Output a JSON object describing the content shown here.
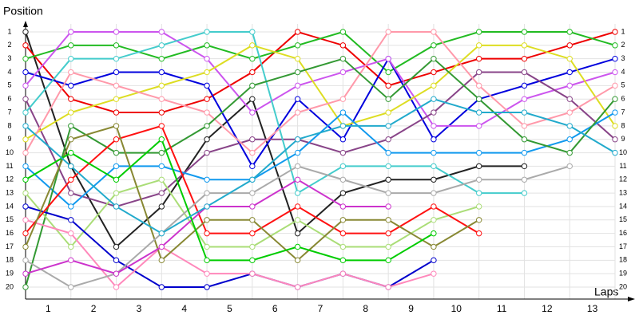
{
  "chart_data": {
    "type": "line",
    "y_label": "Position",
    "x_label": "Laps",
    "x": [
      0,
      1,
      2,
      3,
      4,
      5,
      6,
      7,
      8,
      9,
      10,
      11,
      12,
      13
    ],
    "xlim": [
      0,
      13
    ],
    "xticks": [
      {
        "value": 0.5,
        "label": "1"
      },
      {
        "value": 1.5,
        "label": "2"
      },
      {
        "value": 2.5,
        "label": "3"
      },
      {
        "value": 3.5,
        "label": "4"
      },
      {
        "value": 4.5,
        "label": "5"
      },
      {
        "value": 5.5,
        "label": "6"
      },
      {
        "value": 6.5,
        "label": "7"
      },
      {
        "value": 7.5,
        "label": "8"
      },
      {
        "value": 8.5,
        "label": "9"
      },
      {
        "value": 9.5,
        "label": "10"
      },
      {
        "value": 10.5,
        "label": "11"
      },
      {
        "value": 11.5,
        "label": "12"
      },
      {
        "value": 12.5,
        "label": "13"
      }
    ],
    "ylim": [
      1,
      20
    ],
    "y_reversed": true,
    "yticks": [
      1,
      2,
      3,
      4,
      5,
      6,
      7,
      8,
      9,
      10,
      11,
      12,
      13,
      14,
      15,
      16,
      17,
      18,
      19,
      20
    ],
    "grid": true,
    "series": [
      {
        "color": "#222222",
        "values": [
          1,
          11,
          17,
          14,
          9,
          6,
          16,
          13,
          12,
          12,
          11,
          11,
          null,
          null
        ]
      },
      {
        "color": "#ee0000",
        "values": [
          2,
          6,
          7,
          7,
          6,
          4,
          1,
          2,
          5,
          4,
          3,
          3,
          2,
          1
        ]
      },
      {
        "color": "#22bb22",
        "values": [
          3,
          2,
          2,
          3,
          2,
          3,
          2,
          1,
          4,
          2,
          1,
          1,
          1,
          2
        ]
      },
      {
        "color": "#0000dd",
        "values": [
          4,
          5,
          4,
          4,
          5,
          11,
          6,
          9,
          3,
          9,
          6,
          5,
          4,
          3
        ]
      },
      {
        "color": "#cc55ee",
        "values": [
          5,
          1,
          1,
          1,
          3,
          7,
          5,
          4,
          3,
          8,
          8,
          6,
          5,
          4
        ]
      },
      {
        "color": "#884488",
        "values": [
          6,
          13,
          14,
          13,
          10,
          9,
          9,
          10,
          9,
          7,
          4,
          4,
          6,
          9
        ]
      },
      {
        "color": "#44cccc",
        "values": [
          7,
          3,
          3,
          2,
          1,
          1,
          13,
          11,
          11,
          11,
          13,
          13,
          null,
          null
        ]
      },
      {
        "color": "#dddd22",
        "values": [
          9,
          7,
          6,
          5,
          4,
          2,
          3,
          8,
          7,
          5,
          2,
          2,
          3,
          8
        ]
      },
      {
        "color": "#ff99aa",
        "values": [
          10,
          4,
          5,
          6,
          7,
          10,
          7,
          6,
          1,
          1,
          5,
          8,
          7,
          5
        ]
      },
      {
        "color": "#1199ee",
        "values": [
          11,
          14,
          11,
          11,
          12,
          12,
          10,
          7,
          10,
          10,
          10,
          10,
          9,
          7
        ]
      },
      {
        "color": "#339933",
        "values": [
          20,
          8,
          10,
          10,
          8,
          5,
          4,
          3,
          6,
          3,
          6,
          9,
          10,
          6
        ]
      },
      {
        "color": "#aadd77",
        "values": [
          13,
          17,
          13,
          12,
          17,
          17,
          15,
          17,
          17,
          15,
          14,
          null,
          null,
          null
        ]
      },
      {
        "color": "#0000cc",
        "values": [
          14,
          15,
          18,
          20,
          20,
          19,
          20,
          19,
          20,
          18,
          null,
          null,
          null,
          null
        ]
      },
      {
        "color": "#ff88bb",
        "values": [
          15,
          16,
          20,
          17,
          19,
          19,
          20,
          19,
          20,
          19,
          null,
          null,
          null,
          null
        ]
      },
      {
        "color": "#ff1111",
        "values": [
          16,
          12,
          9,
          8,
          16,
          16,
          14,
          16,
          16,
          14,
          16,
          null,
          null,
          null
        ]
      },
      {
        "color": "#888833",
        "values": [
          17,
          9,
          8,
          18,
          15,
          15,
          18,
          15,
          15,
          17,
          15,
          null,
          null,
          null
        ]
      },
      {
        "color": "#aaaaaa",
        "values": [
          18,
          20,
          19,
          16,
          13,
          13,
          11,
          12,
          13,
          13,
          12,
          12,
          11,
          null
        ]
      },
      {
        "color": "#cc33cc",
        "values": [
          19,
          18,
          19,
          17,
          14,
          14,
          12,
          14,
          14,
          null,
          null,
          null,
          null,
          null
        ]
      },
      {
        "color": "#00cc00",
        "values": [
          12,
          10,
          12,
          9,
          18,
          18,
          17,
          18,
          18,
          16,
          null,
          null,
          null,
          null
        ]
      },
      {
        "color": "#22aacc",
        "values": [
          8,
          11,
          14,
          16,
          14,
          12,
          9,
          8,
          8,
          6,
          7,
          7,
          8,
          10
        ]
      }
    ]
  }
}
